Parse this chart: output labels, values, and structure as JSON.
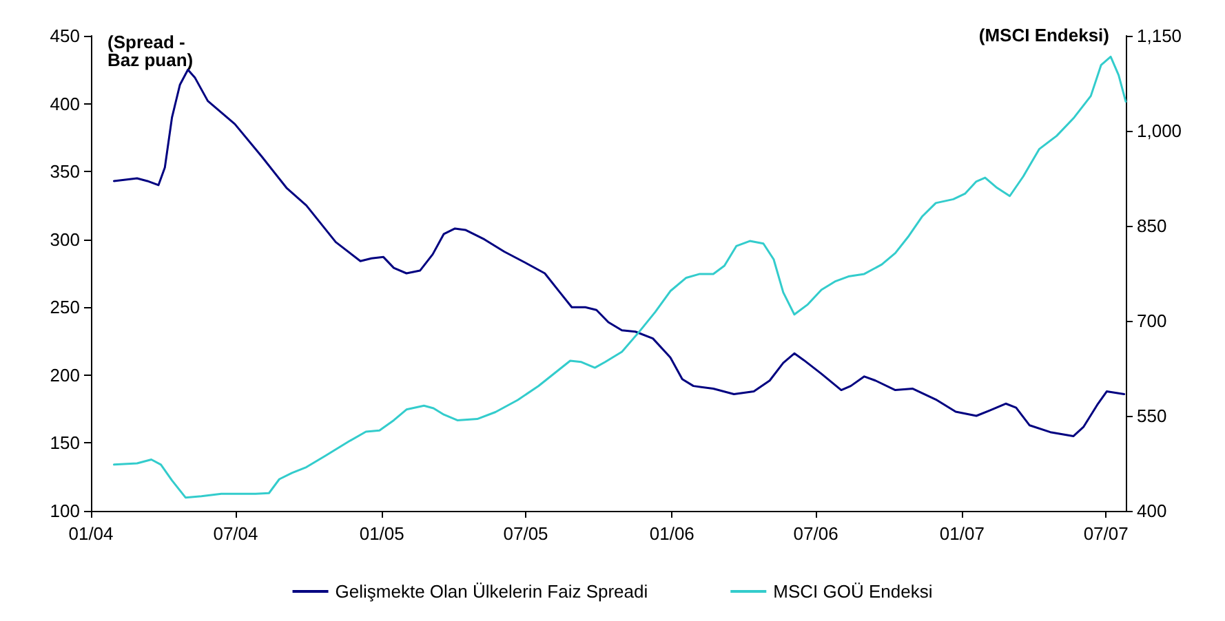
{
  "chart_data": {
    "type": "line",
    "ylabel": "(Spread -\nBaz puan)",
    "y2label": "(MSCI Endeksi)",
    "xlim": [
      "2004-01-01",
      "2007-07-26"
    ],
    "xticks": [
      {
        "value": "2004-01-01",
        "label": "01/04"
      },
      {
        "value": "2004-07-01",
        "label": "07/04"
      },
      {
        "value": "2005-01-01",
        "label": "01/05"
      },
      {
        "value": "2005-07-01",
        "label": "07/05"
      },
      {
        "value": "2006-01-01",
        "label": "01/06"
      },
      {
        "value": "2006-07-01",
        "label": "07/06"
      },
      {
        "value": "2007-01-01",
        "label": "01/07"
      },
      {
        "value": "2007-07-01",
        "label": "07/07"
      }
    ],
    "ylim": [
      100,
      450
    ],
    "yticks": [
      100,
      150,
      200,
      250,
      300,
      350,
      400,
      450
    ],
    "y2lim": [
      400,
      1150
    ],
    "y2ticks": [
      400,
      550,
      700,
      850,
      {
        "value": 1000,
        "label": "1,000"
      },
      {
        "value": 1150,
        "label": "1,150"
      }
    ],
    "grid": false,
    "legend": "bottom",
    "marker": "none",
    "line_style": "solid",
    "series": [
      {
        "name": "Gelişmekte Olan Ülkelerin Faiz Spreadi",
        "color": "#000080",
        "x": [
          "2004-01-30",
          "2004-02-28",
          "2004-03-12",
          "2004-03-26",
          "2004-04-03",
          "2004-04-12",
          "2004-04-22",
          "2004-05-02",
          "2004-05-11",
          "2004-05-27",
          "2004-06-30",
          "2004-08-03",
          "2004-09-03",
          "2004-09-28",
          "2004-11-04",
          "2004-12-05",
          "2004-12-19",
          "2005-01-03",
          "2005-01-16",
          "2005-02-01",
          "2005-02-18",
          "2005-03-06",
          "2005-03-20",
          "2005-04-03",
          "2005-04-16",
          "2005-05-10",
          "2005-06-04",
          "2005-06-30",
          "2005-07-25",
          "2005-08-13",
          "2005-08-28",
          "2005-09-14",
          "2005-09-28",
          "2005-10-13",
          "2005-10-30",
          "2005-11-16",
          "2005-12-08",
          "2005-12-30",
          "2006-01-14",
          "2006-01-28",
          "2006-02-22",
          "2006-03-20",
          "2006-04-14",
          "2006-05-04",
          "2006-05-21",
          "2006-06-04",
          "2006-06-16",
          "2006-07-08",
          "2006-08-02",
          "2006-08-14",
          "2006-08-31",
          "2006-09-14",
          "2006-10-09",
          "2006-10-31",
          "2006-11-29",
          "2006-12-24",
          "2007-01-19",
          "2007-02-05",
          "2007-02-25",
          "2007-03-10",
          "2007-03-27",
          "2007-04-22",
          "2007-05-21",
          "2007-06-03",
          "2007-06-20",
          "2007-07-02",
          "2007-07-24"
        ],
        "values": [
          343,
          345,
          343,
          340,
          353,
          390,
          414,
          425,
          419,
          402,
          385,
          361,
          338,
          325,
          298,
          284,
          286,
          287,
          279,
          275,
          277,
          289,
          304,
          308,
          307,
          300,
          291,
          283,
          275,
          261,
          250,
          250,
          248,
          239,
          233,
          232,
          227,
          213,
          197,
          192,
          190,
          186,
          188,
          196,
          209,
          216,
          211,
          201,
          189,
          192,
          199,
          196,
          189,
          190,
          182,
          173,
          170,
          174,
          179,
          176,
          163,
          158,
          155,
          162,
          178,
          188,
          186
        ]
      },
      {
        "name": "MSCI GOÜ Endeksi",
        "color": "#33cccc",
        "axis": "y2",
        "x": [
          "2004-01-30",
          "2004-02-28",
          "2004-03-17",
          "2004-03-29",
          "2004-04-12",
          "2004-04-29",
          "2004-05-19",
          "2004-06-13",
          "2004-07-05",
          "2004-07-26",
          "2004-08-12",
          "2004-08-25",
          "2004-09-10",
          "2004-09-28",
          "2004-10-22",
          "2004-11-21",
          "2004-12-12",
          "2004-12-29",
          "2005-01-16",
          "2005-02-01",
          "2005-02-23",
          "2005-03-07",
          "2005-03-20",
          "2005-04-06",
          "2005-05-01",
          "2005-05-24",
          "2005-06-21",
          "2005-07-17",
          "2005-08-11",
          "2005-08-26",
          "2005-09-09",
          "2005-09-26",
          "2005-10-09",
          "2005-10-30",
          "2005-11-21",
          "2005-12-11",
          "2005-12-30",
          "2006-01-19",
          "2006-02-05",
          "2006-02-22",
          "2006-03-08",
          "2006-03-23",
          "2006-04-09",
          "2006-04-26",
          "2006-05-09",
          "2006-05-21",
          "2006-06-04",
          "2006-06-21",
          "2006-07-08",
          "2006-07-25",
          "2006-08-11",
          "2006-08-31",
          "2006-09-22",
          "2006-10-09",
          "2006-10-26",
          "2006-11-12",
          "2006-11-29",
          "2006-12-21",
          "2007-01-05",
          "2007-01-19",
          "2007-01-30",
          "2007-02-13",
          "2007-03-02",
          "2007-03-19",
          "2007-04-08",
          "2007-04-30",
          "2007-05-22",
          "2007-06-12",
          "2007-06-25",
          "2007-07-07",
          "2007-07-17",
          "2007-07-26"
        ],
        "values": [
          473,
          475,
          481,
          473,
          448,
          421,
          423,
          427,
          427,
          427,
          428,
          450,
          460,
          469,
          487,
          510,
          525,
          527,
          543,
          560,
          566,
          562,
          552,
          543,
          545,
          556,
          575,
          597,
          622,
          637,
          635,
          626,
          635,
          651,
          683,
          714,
          747,
          768,
          774,
          774,
          787,
          818,
          826,
          822,
          797,
          745,
          710,
          726,
          749,
          762,
          770,
          774,
          789,
          807,
          834,
          865,
          886,
          892,
          901,
          920,
          926,
          911,
          897,
          928,
          971,
          992,
          1021,
          1055,
          1104,
          1117,
          1088,
          1046
        ]
      }
    ]
  }
}
